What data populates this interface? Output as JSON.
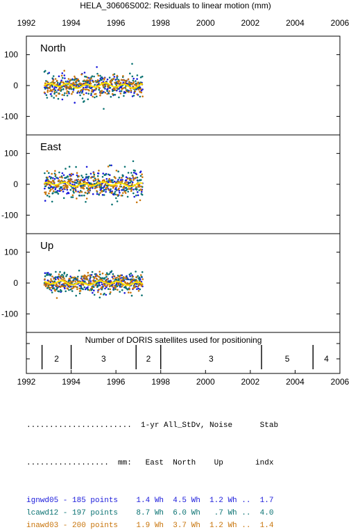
{
  "chart_data": {
    "type": "scatter",
    "title": "HELA_30606S002: Residuals to linear motion (mm)",
    "x_ticks": [
      "1992",
      "1994",
      "1996",
      "1998",
      "2000",
      "2002",
      "2004",
      "2006"
    ],
    "xlim": [
      1992,
      2006
    ],
    "panels": [
      {
        "label": "North",
        "ylim": [
          -160,
          160
        ],
        "y_ticks": [
          "100",
          "0",
          "-100"
        ]
      },
      {
        "label": "East",
        "ylim": [
          -160,
          160
        ],
        "y_ticks": [
          "100",
          "0",
          "-100"
        ]
      },
      {
        "label": "Up",
        "ylim": [
          -160,
          160
        ],
        "y_ticks": [
          "100",
          "0",
          "-100"
        ]
      }
    ],
    "data_span": [
      1992.8,
      1997.2
    ],
    "series": [
      {
        "name": "ignwd05",
        "color": "#1a1adb",
        "points": 185
      },
      {
        "name": "lcawd12",
        "color": "#0a7272",
        "points": 197
      },
      {
        "name": "inawd03",
        "color": "#c8740a",
        "points": 200
      }
    ],
    "smooth_color": "#ffe600",
    "doris": {
      "title": "Number of DORIS satellites used for positioning",
      "boundaries": [
        1992.7,
        1994.0,
        1996.9,
        1998.0,
        2002.5,
        2004.8
      ],
      "segments": [
        {
          "from": 1992.7,
          "to": 1994.0,
          "count": "2"
        },
        {
          "from": 1994.0,
          "to": 1996.9,
          "count": "3"
        },
        {
          "from": 1996.9,
          "to": 1998.0,
          "count": "2"
        },
        {
          "from": 1998.0,
          "to": 2002.5,
          "count": "3"
        },
        {
          "from": 2002.5,
          "to": 2004.8,
          "count": "5"
        },
        {
          "from": 2004.8,
          "to": 2006.0,
          "count": "4"
        }
      ]
    }
  },
  "stats_table": {
    "header1": ".......................  1-yr All_StDv, Noise      Stab",
    "header2": "..................  mm:   East  North    Up       indx",
    "rows": [
      {
        "text": "ignwd05 - 185 points    1.4 Wh  4.5 Wh  1.2 Wh ..  1.7",
        "color": "#1a1adb"
      },
      {
        "text": "lcawd12 - 197 points    8.7 Wh  6.0 Wh   .7 Wh ..  4.0",
        "color": "#0a7272"
      },
      {
        "text": "inawd03 - 200 points    1.9 Wh  3.7 Wh  1.2 Wh ..  1.4",
        "color": "#c8740a"
      }
    ]
  }
}
